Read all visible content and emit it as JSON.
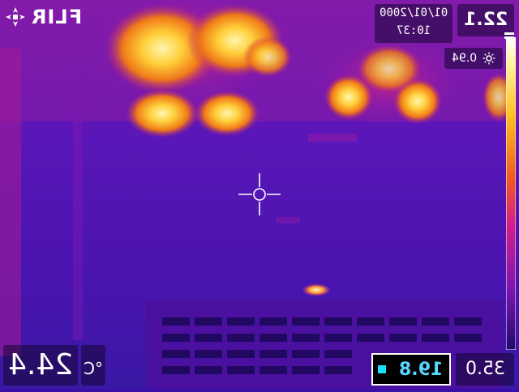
{
  "camera": {
    "brand": "FLIR",
    "date": "01/01/2000",
    "time": "10:37",
    "spot_temperature": "22.1",
    "emissivity": "0.94",
    "scale_max": "35.0",
    "span_value": "19.8",
    "large_reading": "24.4",
    "unit": "°C"
  },
  "icons": {
    "logo": "flir-logo-icon",
    "emissivity": "sun-icon",
    "crosshair": "crosshair-icon",
    "span": "span-indicator-icon"
  },
  "colors": {
    "overlay_text": "#ffffff",
    "span_value": "#58d6ff",
    "span_indicator": "#19e0ff",
    "iron_low": "#2a0c8c",
    "iron_mid": "#b0108f",
    "iron_high": "#ffe35a"
  }
}
